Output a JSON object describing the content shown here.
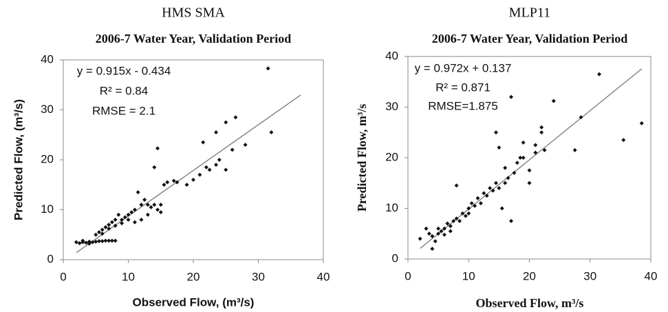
{
  "chart_data": [
    {
      "type": "scatter",
      "title": "HMS SMA",
      "subtitle": "2006-7 Water Year, Validation Period",
      "x_label": "Observed Flow, (m³/s)",
      "y_label": "Predicted Flow, (m³/s)",
      "annotations": [
        "y = 0.915x - 0.434",
        "R² = 0.84",
        "RMSE = 2.1"
      ],
      "color": "#111111",
      "line_color": "#888888",
      "fit": {
        "slope": 0.915,
        "intercept": -0.434,
        "x_range": [
          2,
          36.5
        ]
      },
      "xlim": [
        0,
        40
      ],
      "ylim": [
        0,
        40
      ],
      "xticks": [
        0,
        10,
        20,
        30,
        40
      ],
      "yticks": [
        0,
        10,
        20,
        30,
        40
      ],
      "x": [
        2,
        2.5,
        3,
        3.5,
        4,
        4.5,
        5,
        5.5,
        6,
        6.5,
        7,
        7.5,
        8,
        3,
        4,
        5,
        5.5,
        6,
        6,
        6.5,
        7,
        7,
        7.5,
        8,
        8,
        8.5,
        9,
        9,
        9.5,
        10,
        10,
        10.5,
        11,
        11,
        11.5,
        12,
        12,
        12.5,
        13,
        13,
        13.5,
        14,
        14,
        14.5,
        14.5,
        15,
        15,
        15.5,
        16,
        17,
        17.5,
        19,
        20,
        21,
        21.5,
        22,
        22.5,
        23.5,
        23.5,
        24,
        25,
        25,
        26,
        26.5,
        28,
        31.5,
        32
      ],
      "y": [
        3.5,
        3.3,
        3.5,
        3.4,
        3.6,
        3.5,
        3.6,
        3.7,
        3.7,
        3.8,
        3.8,
        3.8,
        3.8,
        3.8,
        3.2,
        5,
        5.5,
        6,
        5.2,
        6.5,
        7,
        6.2,
        7.5,
        8,
        6.8,
        9,
        8,
        7.3,
        8.5,
        9,
        8,
        9.5,
        10,
        7.5,
        13.5,
        11,
        8,
        12,
        11,
        9,
        10.5,
        11,
        18.5,
        22.3,
        10,
        9.5,
        11,
        15,
        15.5,
        15.8,
        15.5,
        15,
        16,
        17,
        23.5,
        18.5,
        18,
        19,
        25.5,
        20,
        27.5,
        18,
        22,
        28.5,
        23,
        38.3,
        25.5
      ]
    },
    {
      "type": "scatter",
      "title": "MLP11",
      "subtitle": "2006-7 Water Year, Validation Period",
      "x_label": "Observed Flow, m³/s",
      "y_label": "Predicted Flow, m³/s",
      "annotations": [
        "y = 0.972x + 0.137",
        "R² = 0.871",
        "RMSE=1.875"
      ],
      "color": "#111111",
      "line_color": "#888888",
      "fit": {
        "slope": 0.972,
        "intercept": 0.137,
        "x_range": [
          2,
          38.5
        ]
      },
      "xlim": [
        0,
        40
      ],
      "ylim": [
        0,
        40
      ],
      "xticks": [
        0,
        10,
        20,
        30,
        40
      ],
      "yticks": [
        0,
        10,
        20,
        30,
        40
      ],
      "x": [
        2,
        3,
        3.5,
        4,
        4,
        4.5,
        5,
        5,
        5.5,
        6,
        6,
        6.5,
        7,
        7,
        7.5,
        8,
        8,
        8.5,
        9,
        9.5,
        10,
        10,
        10.5,
        11,
        11.5,
        12,
        12.5,
        13,
        13.5,
        14,
        14.5,
        14.5,
        15,
        15,
        15.5,
        16,
        16,
        16.5,
        17,
        17,
        17.5,
        18,
        18.5,
        19,
        19,
        20,
        20,
        21,
        21,
        22,
        22,
        22.5,
        24,
        27.5,
        28.5,
        31.5,
        35.5,
        38.5
      ],
      "y": [
        4,
        6,
        5,
        4.5,
        2,
        3.5,
        5,
        6,
        5.5,
        6,
        4.8,
        7,
        6.5,
        5.5,
        7.5,
        8,
        14.5,
        7.5,
        9,
        8.5,
        10,
        9,
        11,
        10.5,
        12,
        11,
        13,
        12.5,
        14,
        13.5,
        25,
        15,
        22,
        14,
        10,
        15,
        18,
        16,
        32,
        7.5,
        17,
        19,
        20,
        20,
        23,
        17.5,
        15,
        21,
        22.5,
        26,
        25,
        21.5,
        31.2,
        21.5,
        28,
        36.5,
        23.5,
        26.8
      ]
    }
  ]
}
